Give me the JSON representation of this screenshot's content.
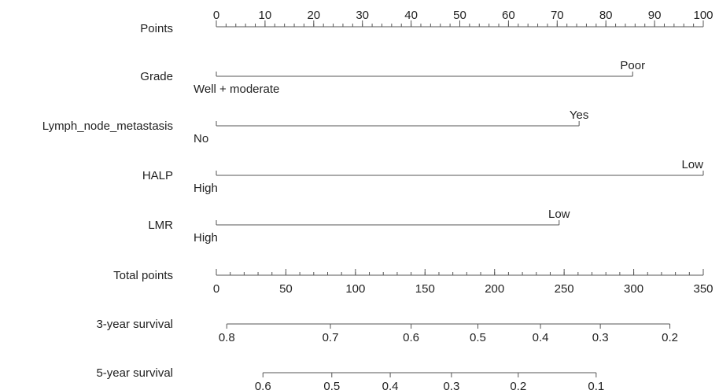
{
  "chart_data": {
    "type": "nomogram",
    "rows": [
      {
        "label": "Points",
        "kind": "scale",
        "domain": [
          0,
          100
        ],
        "ticks": [
          0,
          10,
          20,
          30,
          40,
          50,
          60,
          70,
          80,
          90,
          100
        ],
        "tick_labels": [
          "0",
          "10",
          "20",
          "30",
          "40",
          "50",
          "60",
          "70",
          "80",
          "90",
          "100"
        ],
        "minor_step": 2,
        "labels_above": true
      },
      {
        "label": "Grade",
        "kind": "variable",
        "points_min": 0,
        "points_max": 85.5,
        "level_low": "Well + moderate",
        "level_high": "Poor"
      },
      {
        "label": "Lymph_node_metastasis",
        "kind": "variable",
        "points_min": 0,
        "points_max": 74.5,
        "level_low": "No",
        "level_high": "Yes"
      },
      {
        "label": "HALP",
        "kind": "variable",
        "points_min": 0,
        "points_max": 100,
        "level_low": "High",
        "level_high": "Low"
      },
      {
        "label": "LMR",
        "kind": "variable",
        "points_min": 0,
        "points_max": 70.4,
        "level_low": "High",
        "level_high": "Low"
      },
      {
        "label": "Total points",
        "kind": "scale",
        "domain": [
          0,
          350
        ],
        "ticks": [
          0,
          50,
          100,
          150,
          200,
          250,
          300,
          350
        ],
        "tick_labels": [
          "0",
          "50",
          "100",
          "150",
          "200",
          "250",
          "300",
          "350"
        ],
        "minor_step": 10,
        "labels_above": false
      },
      {
        "label": "3-year survival",
        "kind": "probability",
        "total_range": [
          7.5,
          326
        ],
        "ticks": [
          {
            "label": "0.8",
            "total": 7.5
          },
          {
            "label": "0.7",
            "total": 82
          },
          {
            "label": "0.6",
            "total": 140
          },
          {
            "label": "0.5",
            "total": 188
          },
          {
            "label": "0.4",
            "total": 233
          },
          {
            "label": "0.3",
            "total": 276
          },
          {
            "label": "0.2",
            "total": 326
          }
        ]
      },
      {
        "label": "5-year survival",
        "kind": "probability",
        "total_range": [
          33.5,
          273
        ],
        "ticks": [
          {
            "label": "0.6",
            "total": 33.5
          },
          {
            "label": "0.5",
            "total": 83
          },
          {
            "label": "0.4",
            "total": 125
          },
          {
            "label": "0.3",
            "total": 169
          },
          {
            "label": "0.2",
            "total": 217
          },
          {
            "label": "0.1",
            "total": 273
          }
        ]
      }
    ]
  }
}
